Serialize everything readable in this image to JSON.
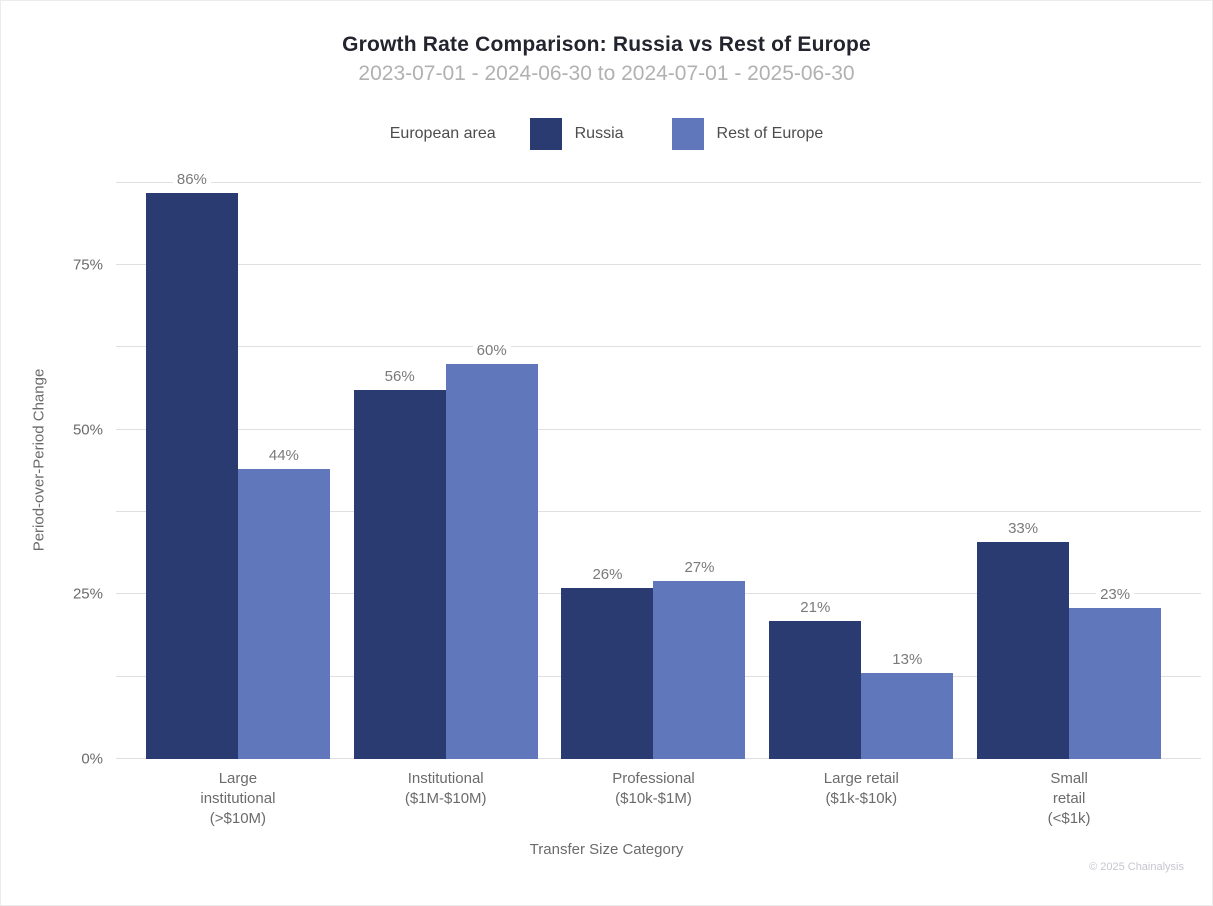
{
  "header": {
    "title": "Growth Rate Comparison: Russia vs Rest of Europe",
    "subtitle": "2023-07-01 - 2024-06-30 to 2024-07-01 - 2025-06-30"
  },
  "legend": {
    "title": "European area",
    "items": [
      {
        "name": "Russia",
        "color": "#2a3b72"
      },
      {
        "name": "Rest of Europe",
        "color": "#6078bb"
      }
    ]
  },
  "chart_data": {
    "type": "bar",
    "title": "Growth Rate Comparison: Russia vs Rest of Europe",
    "subtitle": "2023-07-01 - 2024-06-30 to 2024-07-01 - 2025-06-30",
    "categories": [
      "Large institutional (>$10M)",
      "Institutional ($1M-$10M)",
      "Professional ($10k-$1M)",
      "Large retail ($1k-$10k)",
      "Small retail (<$1k)"
    ],
    "category_lines": [
      [
        "Large",
        "institutional",
        "(>$10M)"
      ],
      [
        "Institutional",
        "($1M-$10M)"
      ],
      [
        "Professional",
        "($10k-$1M)"
      ],
      [
        "Large retail",
        "($1k-$10k)"
      ],
      [
        "Small",
        "retail",
        "(<$1k)"
      ]
    ],
    "series": [
      {
        "name": "Russia",
        "color": "#2a3b72",
        "values": [
          86,
          56,
          26,
          21,
          33
        ]
      },
      {
        "name": "Rest of Europe",
        "color": "#6078bb",
        "values": [
          44,
          60,
          27,
          13,
          23
        ]
      }
    ],
    "xlabel": "Transfer Size Category",
    "ylabel": "Period-over-Period Change",
    "ylim": [
      0,
      90.8
    ],
    "yticks_labeled": [
      0,
      25,
      50,
      75
    ],
    "gridlines": [
      0,
      12.5,
      25,
      37.5,
      50,
      62.5,
      75,
      87.5
    ],
    "value_suffix": "%",
    "grid": true,
    "legend_title": "European area",
    "legend_position": "top"
  },
  "footer": {
    "copyright": "© 2025 Chainalysis"
  },
  "colors": {
    "russia": "#2a3b72",
    "rest_of_europe": "#6078bb",
    "gridline": "#e0e0e0",
    "axis_text": "#6b6b6b",
    "data_label": "#7a7a7a",
    "title_text": "#23242e",
    "subtitle_text": "#b1b1b1",
    "footer_text": "#c6c6d0"
  }
}
